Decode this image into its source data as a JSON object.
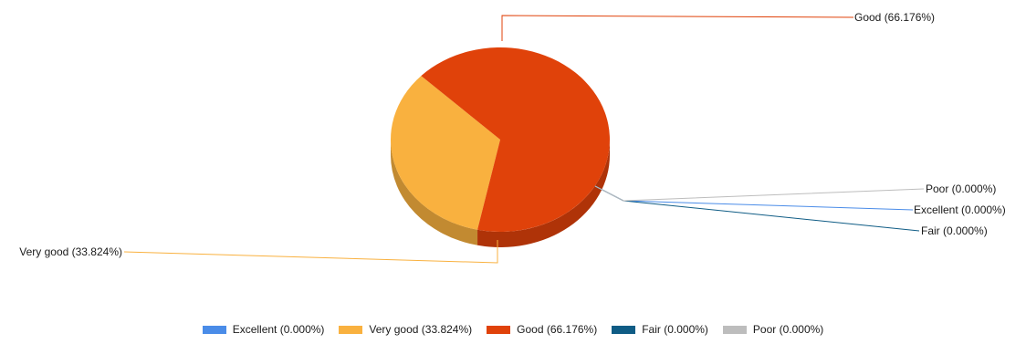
{
  "chart_data": {
    "type": "pie",
    "title": "",
    "series": [
      {
        "name": "Excellent",
        "value": 0.0,
        "label": "Excellent (0.000%)",
        "color": "#4A8CE8"
      },
      {
        "name": "Very good",
        "value": 33.824,
        "label": "Very good (33.824%)",
        "color": "#F9B13F"
      },
      {
        "name": "Good",
        "value": 66.176,
        "label": "Good (66.176%)",
        "color": "#E0420A"
      },
      {
        "name": "Fair",
        "value": 0.0,
        "label": "Fair (0.000%)",
        "color": "#0F5C85"
      },
      {
        "name": "Poor",
        "value": 0.0,
        "label": "Poor (0.000%)",
        "color": "#BDBDBD"
      }
    ],
    "legend_position": "bottom",
    "style": "3d"
  }
}
